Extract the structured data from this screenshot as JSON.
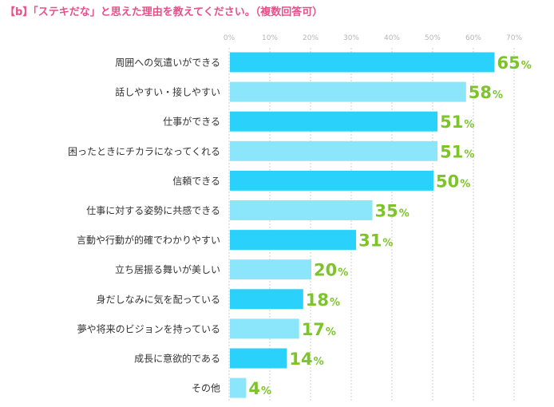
{
  "title": "【b】「ステキだな」と思えた理由を教えてください。（複数回答可）",
  "colors": {
    "bar_dark": "#29d1fb",
    "bar_light": "#8be6fc",
    "value_text": "#7dc42a",
    "title": "#e8508c",
    "grid": "#cfcfcf",
    "tick": "#b5b5b5",
    "label": "#333333"
  },
  "chart_data": {
    "type": "bar",
    "orientation": "horizontal",
    "title": "【b】「ステキだな」と思えた理由を教えてください。（複数回答可）",
    "xlim": [
      0,
      70
    ],
    "ticks": [
      "0%",
      "10%",
      "20%",
      "30%",
      "40%",
      "50%",
      "60%",
      "70%"
    ],
    "grid": true,
    "categories": [
      "周囲への気遣いができる",
      "話しやすい・接しやすい",
      "仕事ができる",
      "困ったときにチカラになってくれる",
      "信頼できる",
      "仕事に対する姿勢に共感できる",
      "言動や行動が的確でわかりやすい",
      "立ち居振る舞いが美しい",
      "身だしなみに気を配っている",
      "夢や将来のビジョンを持っている",
      "成長に意欲的である",
      "その他"
    ],
    "values": [
      65,
      58,
      51,
      51,
      50,
      35,
      31,
      20,
      18,
      17,
      14,
      4
    ],
    "value_unit": "%"
  }
}
